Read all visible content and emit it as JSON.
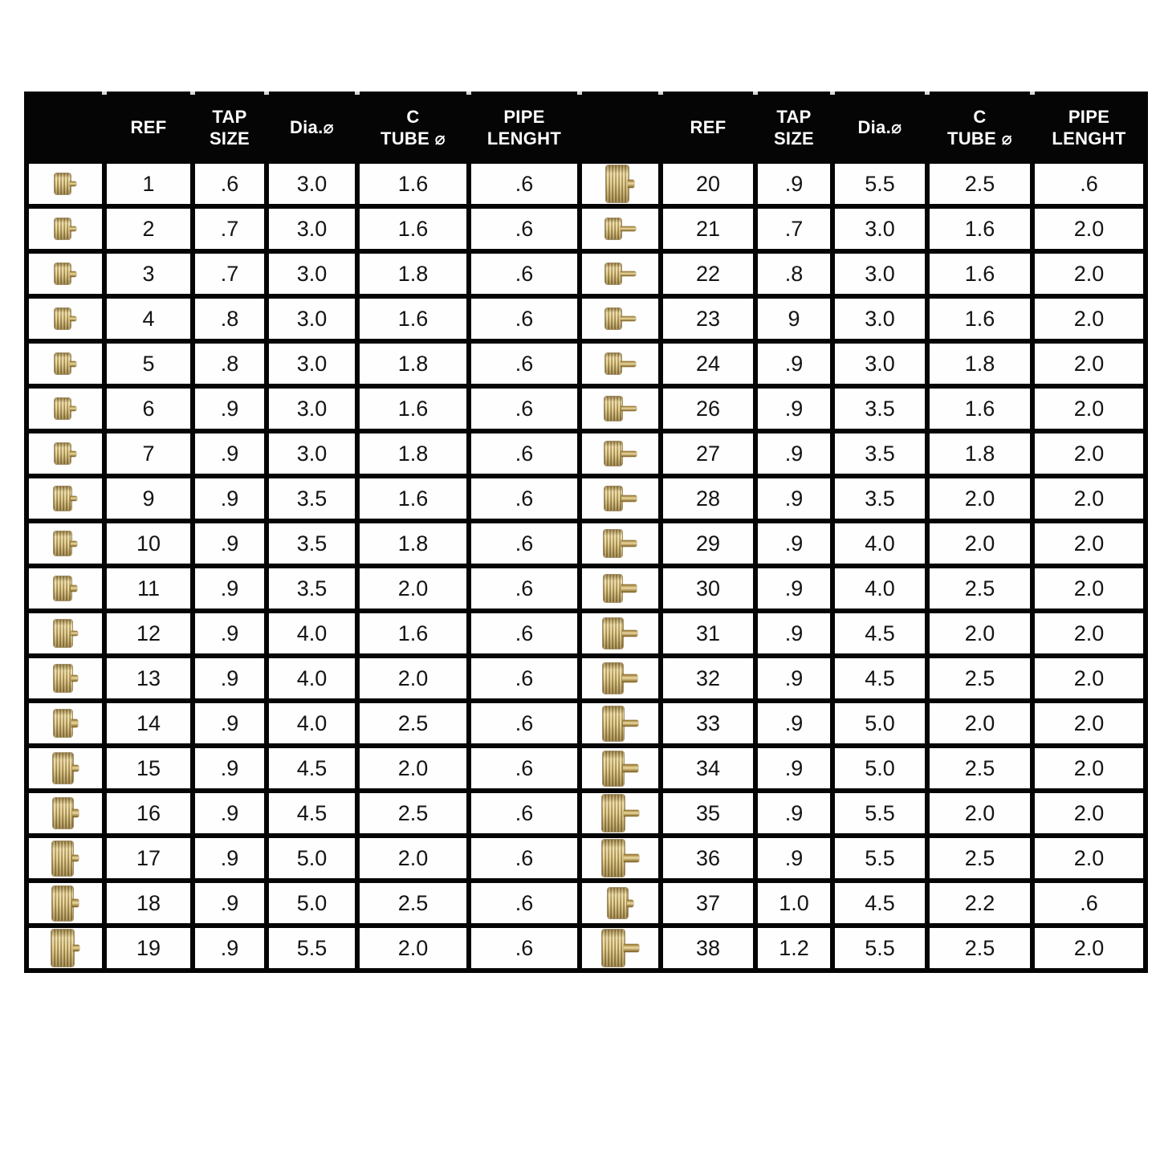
{
  "page": {
    "background_color": "#ffffff",
    "table_border_color": "#050505",
    "header_bg_color": "#050505",
    "header_text_color": "#ffffff",
    "crown_gold_color": "#c9a44f"
  },
  "table": {
    "column_headers": [
      "",
      "REF",
      "TAP\nSIZE",
      "Dia.⌀",
      "C\nTUBE ⌀",
      "PIPE\nLENGHT"
    ],
    "column_keys": [
      "crown-icon",
      "ref",
      "tap-size",
      "dia",
      "c-tube",
      "pipe-length"
    ],
    "halves": [
      {
        "rows": [
          [
            "1",
            ".6",
            "3.0",
            "1.6",
            ".6"
          ],
          [
            "2",
            ".7",
            "3.0",
            "1.6",
            ".6"
          ],
          [
            "3",
            ".7",
            "3.0",
            "1.8",
            ".6"
          ],
          [
            "4",
            ".8",
            "3.0",
            "1.6",
            ".6"
          ],
          [
            "5",
            ".8",
            "3.0",
            "1.8",
            ".6"
          ],
          [
            "6",
            ".9",
            "3.0",
            "1.6",
            ".6"
          ],
          [
            "7",
            ".9",
            "3.0",
            "1.8",
            ".6"
          ],
          [
            "9",
            ".9",
            "3.5",
            "1.6",
            ".6"
          ],
          [
            "10",
            ".9",
            "3.5",
            "1.8",
            ".6"
          ],
          [
            "11",
            ".9",
            "3.5",
            "2.0",
            ".6"
          ],
          [
            "12",
            ".9",
            "4.0",
            "1.6",
            ".6"
          ],
          [
            "13",
            ".9",
            "4.0",
            "2.0",
            ".6"
          ],
          [
            "14",
            ".9",
            "4.0",
            "2.5",
            ".6"
          ],
          [
            "15",
            ".9",
            "4.5",
            "2.0",
            ".6"
          ],
          [
            "16",
            ".9",
            "4.5",
            "2.5",
            ".6"
          ],
          [
            "17",
            ".9",
            "5.0",
            "2.0",
            ".6"
          ],
          [
            "18",
            ".9",
            "5.0",
            "2.5",
            ".6"
          ],
          [
            "19",
            ".9",
            "5.5",
            "2.0",
            ".6"
          ]
        ]
      },
      {
        "rows": [
          [
            "20",
            ".9",
            "5.5",
            "2.5",
            ".6"
          ],
          [
            "21",
            ".7",
            "3.0",
            "1.6",
            "2.0"
          ],
          [
            "22",
            ".8",
            "3.0",
            "1.6",
            "2.0"
          ],
          [
            "23",
            "9",
            "3.0",
            "1.6",
            "2.0"
          ],
          [
            "24",
            ".9",
            "3.0",
            "1.8",
            "2.0"
          ],
          [
            "26",
            ".9",
            "3.5",
            "1.6",
            "2.0"
          ],
          [
            "27",
            ".9",
            "3.5",
            "1.8",
            "2.0"
          ],
          [
            "28",
            ".9",
            "3.5",
            "2.0",
            "2.0"
          ],
          [
            "29",
            ".9",
            "4.0",
            "2.0",
            "2.0"
          ],
          [
            "30",
            ".9",
            "4.0",
            "2.5",
            "2.0"
          ],
          [
            "31",
            ".9",
            "4.5",
            "2.0",
            "2.0"
          ],
          [
            "32",
            ".9",
            "4.5",
            "2.5",
            "2.0"
          ],
          [
            "33",
            ".9",
            "5.0",
            "2.0",
            "2.0"
          ],
          [
            "34",
            ".9",
            "5.0",
            "2.5",
            "2.0"
          ],
          [
            "35",
            ".9",
            "5.5",
            "2.0",
            "2.0"
          ],
          [
            "36",
            ".9",
            "5.5",
            "2.5",
            "2.0"
          ],
          [
            "37",
            "1.0",
            "4.5",
            "2.2",
            ".6"
          ],
          [
            "38",
            "1.2",
            "5.5",
            "2.5",
            "2.0"
          ]
        ]
      }
    ]
  }
}
